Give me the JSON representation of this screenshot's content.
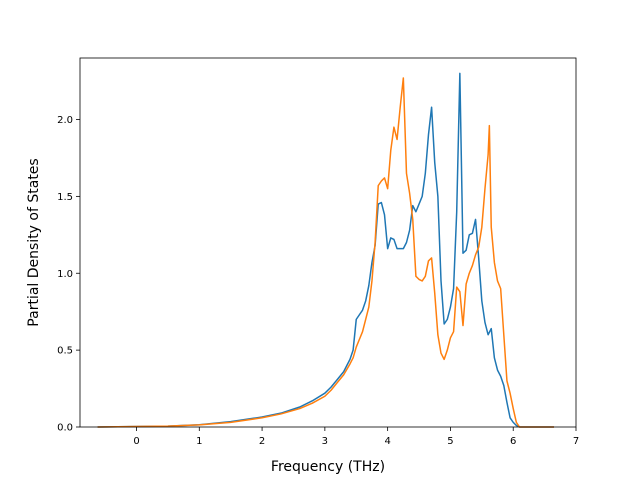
{
  "chart_data": {
    "type": "line",
    "xlabel": "Frequency (THz)",
    "ylabel": "Partial Density of States",
    "xlim": [
      -0.9,
      7.0
    ],
    "ylim": [
      0.0,
      2.4
    ],
    "xticks": [
      0,
      1,
      2,
      3,
      4,
      5,
      6,
      7
    ],
    "yticks": [
      0.0,
      0.5,
      1.0,
      1.5,
      2.0
    ],
    "xtick_labels": [
      "0",
      "1",
      "2",
      "3",
      "4",
      "5",
      "6",
      "7"
    ],
    "ytick_labels": [
      "0.0",
      "0.5",
      "1.0",
      "1.5",
      "2.0"
    ],
    "grid": false,
    "series": [
      {
        "color": "#1f77b4",
        "x": [
          -0.62,
          0.0,
          0.5,
          1.0,
          1.5,
          2.0,
          2.3,
          2.6,
          2.8,
          3.0,
          3.1,
          3.2,
          3.3,
          3.4,
          3.45,
          3.5,
          3.55,
          3.6,
          3.65,
          3.7,
          3.75,
          3.8,
          3.85,
          3.9,
          3.95,
          4.0,
          4.05,
          4.1,
          4.15,
          4.2,
          4.25,
          4.3,
          4.35,
          4.4,
          4.45,
          4.5,
          4.55,
          4.6,
          4.65,
          4.7,
          4.75,
          4.8,
          4.85,
          4.9,
          4.95,
          5.0,
          5.05,
          5.1,
          5.15,
          5.2,
          5.25,
          5.3,
          5.35,
          5.4,
          5.45,
          5.5,
          5.55,
          5.6,
          5.65,
          5.7,
          5.75,
          5.8,
          5.85,
          5.9,
          5.95,
          6.0,
          6.05,
          6.1,
          6.65
        ],
        "y": [
          0.0,
          0.003,
          0.006,
          0.015,
          0.035,
          0.065,
          0.09,
          0.13,
          0.17,
          0.22,
          0.26,
          0.31,
          0.36,
          0.44,
          0.5,
          0.7,
          0.73,
          0.76,
          0.82,
          0.92,
          1.07,
          1.18,
          1.45,
          1.46,
          1.38,
          1.16,
          1.23,
          1.22,
          1.16,
          1.16,
          1.16,
          1.2,
          1.28,
          1.44,
          1.4,
          1.45,
          1.5,
          1.65,
          1.9,
          2.08,
          1.72,
          1.5,
          0.95,
          0.67,
          0.7,
          0.78,
          0.9,
          1.4,
          2.3,
          1.13,
          1.15,
          1.25,
          1.26,
          1.35,
          1.1,
          0.82,
          0.68,
          0.6,
          0.64,
          0.45,
          0.37,
          0.33,
          0.27,
          0.16,
          0.06,
          0.03,
          0.01,
          0.0,
          0.0
        ]
      },
      {
        "color": "#ff7f0e",
        "x": [
          -0.62,
          0.0,
          0.5,
          1.0,
          1.5,
          2.0,
          2.3,
          2.6,
          2.8,
          3.0,
          3.1,
          3.2,
          3.3,
          3.4,
          3.45,
          3.5,
          3.55,
          3.6,
          3.65,
          3.7,
          3.75,
          3.8,
          3.85,
          3.9,
          3.95,
          4.0,
          4.05,
          4.1,
          4.15,
          4.2,
          4.25,
          4.3,
          4.35,
          4.4,
          4.45,
          4.5,
          4.55,
          4.6,
          4.65,
          4.7,
          4.75,
          4.8,
          4.85,
          4.9,
          4.95,
          5.0,
          5.05,
          5.1,
          5.15,
          5.2,
          5.25,
          5.3,
          5.35,
          5.4,
          5.45,
          5.5,
          5.55,
          5.6,
          5.62,
          5.65,
          5.7,
          5.75,
          5.8,
          5.85,
          5.9,
          5.95,
          6.0,
          6.05,
          6.1,
          6.65
        ],
        "y": [
          0.0,
          0.003,
          0.006,
          0.014,
          0.03,
          0.06,
          0.085,
          0.12,
          0.155,
          0.2,
          0.24,
          0.29,
          0.34,
          0.41,
          0.45,
          0.52,
          0.57,
          0.62,
          0.7,
          0.78,
          0.95,
          1.2,
          1.57,
          1.6,
          1.62,
          1.55,
          1.8,
          1.95,
          1.87,
          2.08,
          2.27,
          1.65,
          1.52,
          1.35,
          0.98,
          0.96,
          0.95,
          0.98,
          1.08,
          1.1,
          0.87,
          0.6,
          0.48,
          0.44,
          0.5,
          0.58,
          0.62,
          0.91,
          0.88,
          0.66,
          0.93,
          1.0,
          1.05,
          1.12,
          1.17,
          1.3,
          1.55,
          1.77,
          1.96,
          1.3,
          1.07,
          0.95,
          0.9,
          0.6,
          0.3,
          0.22,
          0.12,
          0.03,
          0.0,
          0.0
        ]
      }
    ]
  }
}
